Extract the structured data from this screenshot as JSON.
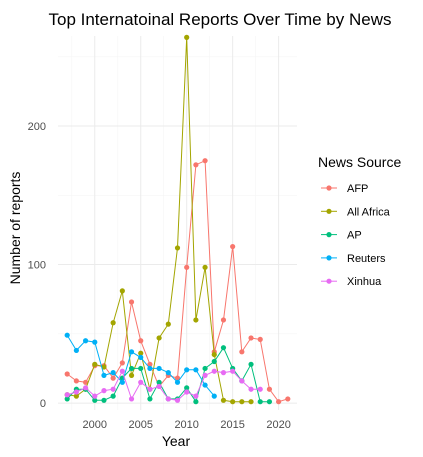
{
  "chart_data": {
    "type": "line",
    "title": "Top Internatoinal Reports Over Time by News",
    "xlabel": "Year",
    "ylabel": "Number of reports",
    "xlim": [
      1996,
      2022
    ],
    "ylim": [
      -5,
      265
    ],
    "x_ticks": [
      2000,
      2005,
      2010,
      2015,
      2020
    ],
    "y_ticks": [
      0,
      100,
      200
    ],
    "grid": true,
    "legend": {
      "title": "News Source",
      "placement": "right"
    },
    "series": [
      {
        "name": "AFP",
        "color": "#F8766D",
        "x": [
          1997,
          1998,
          1999,
          2000,
          2001,
          2002,
          2003,
          2004,
          2005,
          2006,
          2007,
          2008,
          2009,
          2010,
          2011,
          2012,
          2013,
          2014,
          2015,
          2016,
          2017,
          2018,
          2019,
          2020,
          2021
        ],
        "y": [
          21,
          16,
          15,
          27,
          27,
          18,
          29,
          73,
          45,
          28,
          12,
          20,
          18,
          98,
          172,
          175,
          37,
          60,
          113,
          37,
          47,
          46,
          10,
          1,
          3
        ]
      },
      {
        "name": "All Africa",
        "color": "#A3A500",
        "x": [
          1997,
          1998,
          1999,
          2000,
          2001,
          2002,
          2003,
          2004,
          2005,
          2006,
          2007,
          2008,
          2009,
          2010,
          2011,
          2012,
          2013,
          2014,
          2015,
          2016,
          2017
        ],
        "y": [
          6,
          5,
          10,
          28,
          26,
          58,
          81,
          20,
          36,
          10,
          47,
          57,
          112,
          264,
          60,
          98,
          35,
          2,
          1,
          1,
          1
        ]
      },
      {
        "name": "AP",
        "color": "#00BF7D",
        "x": [
          1997,
          1998,
          1999,
          2000,
          2001,
          2002,
          2003,
          2004,
          2005,
          2006,
          2007,
          2008,
          2009,
          2010,
          2011,
          2012,
          2013,
          2014,
          2015,
          2016,
          2017,
          2018,
          2019
        ],
        "y": [
          3,
          10,
          10,
          2,
          2,
          5,
          18,
          25,
          25,
          3,
          15,
          3,
          3,
          11,
          1,
          25,
          30,
          40,
          25,
          16,
          28,
          1,
          1
        ]
      },
      {
        "name": "Reuters",
        "color": "#00B0F6",
        "x": [
          1997,
          1998,
          1999,
          2000,
          2001,
          2002,
          2003,
          2004,
          2005,
          2006,
          2007,
          2008,
          2009,
          2010,
          2011,
          2012,
          2013
        ],
        "y": [
          49,
          38,
          45,
          44,
          20,
          22,
          15,
          37,
          33,
          25,
          25,
          22,
          15,
          24,
          24,
          13,
          5
        ]
      },
      {
        "name": "Xinhua",
        "color": "#E76BF3",
        "x": [
          1997,
          1998,
          1999,
          2000,
          2001,
          2002,
          2003,
          2004,
          2005,
          2006,
          2007,
          2008,
          2009,
          2010,
          2011,
          2012,
          2013,
          2014,
          2015,
          2016,
          2017,
          2018
        ],
        "y": [
          6,
          8,
          11,
          5,
          9,
          10,
          23,
          3,
          15,
          10,
          12,
          3,
          2,
          8,
          5,
          20,
          23,
          22,
          23,
          16,
          10,
          10
        ]
      }
    ]
  }
}
